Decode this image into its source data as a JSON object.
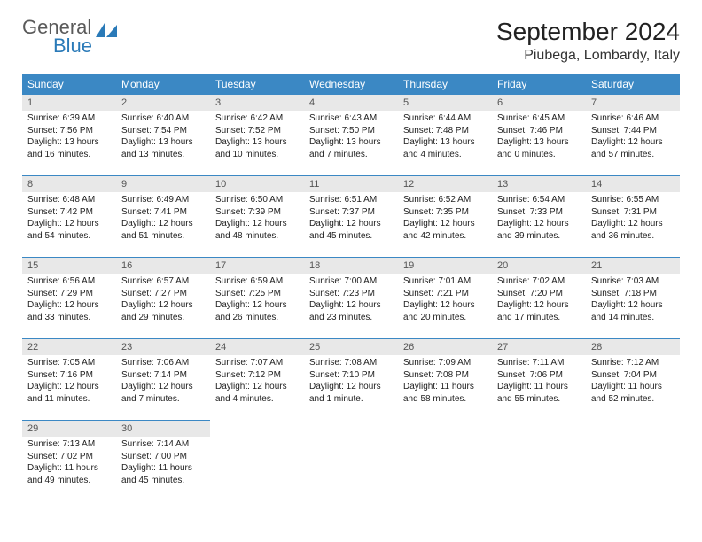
{
  "logo": {
    "general": "General",
    "blue": "Blue"
  },
  "title": "September 2024",
  "location": "Piubega, Lombardy, Italy",
  "colors": {
    "header_bg": "#3b88c4",
    "header_fg": "#ffffff",
    "daynum_bg": "#e8e8e8",
    "row_border": "#3b88c4",
    "logo_gray": "#5a5a5a",
    "logo_blue": "#2a7ab8"
  },
  "weekdays": [
    "Sunday",
    "Monday",
    "Tuesday",
    "Wednesday",
    "Thursday",
    "Friday",
    "Saturday"
  ],
  "days": [
    {
      "n": "1",
      "sr": "6:39 AM",
      "ss": "7:56 PM",
      "dl": "13 hours and 16 minutes."
    },
    {
      "n": "2",
      "sr": "6:40 AM",
      "ss": "7:54 PM",
      "dl": "13 hours and 13 minutes."
    },
    {
      "n": "3",
      "sr": "6:42 AM",
      "ss": "7:52 PM",
      "dl": "13 hours and 10 minutes."
    },
    {
      "n": "4",
      "sr": "6:43 AM",
      "ss": "7:50 PM",
      "dl": "13 hours and 7 minutes."
    },
    {
      "n": "5",
      "sr": "6:44 AM",
      "ss": "7:48 PM",
      "dl": "13 hours and 4 minutes."
    },
    {
      "n": "6",
      "sr": "6:45 AM",
      "ss": "7:46 PM",
      "dl": "13 hours and 0 minutes."
    },
    {
      "n": "7",
      "sr": "6:46 AM",
      "ss": "7:44 PM",
      "dl": "12 hours and 57 minutes."
    },
    {
      "n": "8",
      "sr": "6:48 AM",
      "ss": "7:42 PM",
      "dl": "12 hours and 54 minutes."
    },
    {
      "n": "9",
      "sr": "6:49 AM",
      "ss": "7:41 PM",
      "dl": "12 hours and 51 minutes."
    },
    {
      "n": "10",
      "sr": "6:50 AM",
      "ss": "7:39 PM",
      "dl": "12 hours and 48 minutes."
    },
    {
      "n": "11",
      "sr": "6:51 AM",
      "ss": "7:37 PM",
      "dl": "12 hours and 45 minutes."
    },
    {
      "n": "12",
      "sr": "6:52 AM",
      "ss": "7:35 PM",
      "dl": "12 hours and 42 minutes."
    },
    {
      "n": "13",
      "sr": "6:54 AM",
      "ss": "7:33 PM",
      "dl": "12 hours and 39 minutes."
    },
    {
      "n": "14",
      "sr": "6:55 AM",
      "ss": "7:31 PM",
      "dl": "12 hours and 36 minutes."
    },
    {
      "n": "15",
      "sr": "6:56 AM",
      "ss": "7:29 PM",
      "dl": "12 hours and 33 minutes."
    },
    {
      "n": "16",
      "sr": "6:57 AM",
      "ss": "7:27 PM",
      "dl": "12 hours and 29 minutes."
    },
    {
      "n": "17",
      "sr": "6:59 AM",
      "ss": "7:25 PM",
      "dl": "12 hours and 26 minutes."
    },
    {
      "n": "18",
      "sr": "7:00 AM",
      "ss": "7:23 PM",
      "dl": "12 hours and 23 minutes."
    },
    {
      "n": "19",
      "sr": "7:01 AM",
      "ss": "7:21 PM",
      "dl": "12 hours and 20 minutes."
    },
    {
      "n": "20",
      "sr": "7:02 AM",
      "ss": "7:20 PM",
      "dl": "12 hours and 17 minutes."
    },
    {
      "n": "21",
      "sr": "7:03 AM",
      "ss": "7:18 PM",
      "dl": "12 hours and 14 minutes."
    },
    {
      "n": "22",
      "sr": "7:05 AM",
      "ss": "7:16 PM",
      "dl": "12 hours and 11 minutes."
    },
    {
      "n": "23",
      "sr": "7:06 AM",
      "ss": "7:14 PM",
      "dl": "12 hours and 7 minutes."
    },
    {
      "n": "24",
      "sr": "7:07 AM",
      "ss": "7:12 PM",
      "dl": "12 hours and 4 minutes."
    },
    {
      "n": "25",
      "sr": "7:08 AM",
      "ss": "7:10 PM",
      "dl": "12 hours and 1 minute."
    },
    {
      "n": "26",
      "sr": "7:09 AM",
      "ss": "7:08 PM",
      "dl": "11 hours and 58 minutes."
    },
    {
      "n": "27",
      "sr": "7:11 AM",
      "ss": "7:06 PM",
      "dl": "11 hours and 55 minutes."
    },
    {
      "n": "28",
      "sr": "7:12 AM",
      "ss": "7:04 PM",
      "dl": "11 hours and 52 minutes."
    },
    {
      "n": "29",
      "sr": "7:13 AM",
      "ss": "7:02 PM",
      "dl": "11 hours and 49 minutes."
    },
    {
      "n": "30",
      "sr": "7:14 AM",
      "ss": "7:00 PM",
      "dl": "11 hours and 45 minutes."
    }
  ],
  "labels": {
    "sunrise": "Sunrise: ",
    "sunset": "Sunset: ",
    "daylight": "Daylight: "
  }
}
